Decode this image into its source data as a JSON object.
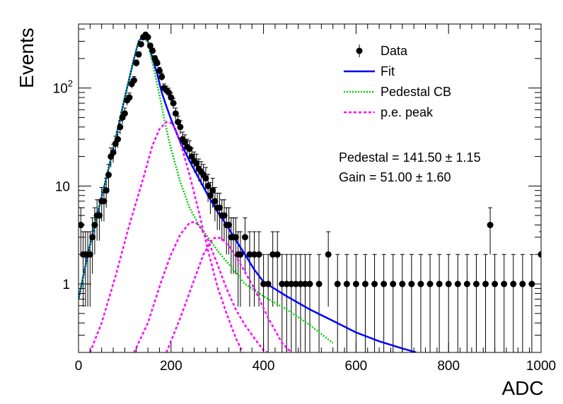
{
  "chart_data": {
    "type": "scatter",
    "xlabel": "ADC",
    "ylabel": "Events",
    "xlim": [
      0,
      1000
    ],
    "ylim": [
      0.2,
      450
    ],
    "yscale": "log",
    "grid": false,
    "legend_position": "top-right",
    "x_ticks": [
      0,
      200,
      400,
      600,
      800,
      1000
    ],
    "x_tick_labels": [
      "0",
      "200",
      "400",
      "600",
      "800",
      "1000"
    ],
    "y_ticks": [
      1,
      10,
      100
    ],
    "y_tick_labels": [
      "1",
      "10",
      "10^2"
    ],
    "legend": [
      {
        "label": "Data",
        "marker": "point-errorbar",
        "color": "#000000"
      },
      {
        "label": "Fit",
        "marker": "solid-line",
        "color": "#0000ff"
      },
      {
        "label": "Pedestal CB",
        "marker": "dotted-line",
        "color": "#00cc00"
      },
      {
        "label": "p.e. peak",
        "marker": "dashed-line",
        "color": "#ff00ff"
      }
    ],
    "annotations": [
      {
        "label": "Pedestal = 141.50",
        "pm": "±",
        "value": "1.15"
      },
      {
        "label": "Gain = 51.00",
        "pm": "±",
        "value": "1.60"
      }
    ],
    "series": [
      {
        "name": "Data",
        "color": "#000000",
        "x": [
          5,
          10,
          15,
          20,
          25,
          30,
          35,
          40,
          45,
          50,
          55,
          60,
          65,
          70,
          75,
          80,
          85,
          90,
          95,
          100,
          105,
          110,
          115,
          120,
          125,
          130,
          135,
          140,
          145,
          150,
          155,
          160,
          165,
          170,
          175,
          180,
          185,
          190,
          195,
          200,
          205,
          210,
          215,
          220,
          225,
          230,
          235,
          240,
          245,
          250,
          255,
          260,
          265,
          270,
          275,
          280,
          285,
          290,
          295,
          300,
          305,
          310,
          315,
          320,
          325,
          330,
          335,
          340,
          345,
          350,
          360,
          370,
          380,
          390,
          400,
          410,
          420,
          430,
          440,
          450,
          460,
          470,
          480,
          490,
          500,
          520,
          540,
          560,
          580,
          600,
          620,
          640,
          660,
          680,
          700,
          720,
          740,
          760,
          780,
          800,
          820,
          840,
          860,
          880,
          890,
          900,
          920,
          940,
          960,
          980,
          1000
        ],
        "y": [
          4,
          2,
          2,
          2,
          2,
          3,
          4,
          5,
          5,
          7,
          7,
          9,
          13,
          20,
          22,
          27,
          30,
          40,
          50,
          55,
          75,
          80,
          110,
          120,
          180,
          220,
          280,
          330,
          350,
          330,
          270,
          240,
          200,
          180,
          150,
          130,
          100,
          95,
          90,
          80,
          70,
          55,
          45,
          40,
          30,
          28,
          25,
          24,
          20,
          18,
          17,
          15,
          14,
          13,
          12,
          10,
          8,
          9,
          7,
          6,
          6,
          5,
          5,
          4,
          4,
          3,
          3,
          3,
          2,
          2,
          3,
          2,
          2,
          2,
          1,
          1,
          2,
          2,
          1,
          1,
          1,
          1,
          1,
          1,
          1,
          1,
          2,
          1,
          1,
          1,
          1,
          1,
          1,
          1,
          1,
          1,
          1,
          1,
          1,
          1,
          1,
          1,
          1,
          1,
          4,
          1,
          1,
          1,
          1,
          1,
          2
        ]
      },
      {
        "name": "Fit",
        "color": "#0000ff",
        "x": [
          0,
          20,
          40,
          60,
          80,
          100,
          120,
          130,
          140,
          150,
          160,
          170,
          180,
          190,
          200,
          220,
          240,
          260,
          280,
          300,
          320,
          340,
          360,
          380,
          400,
          450,
          500,
          550,
          600,
          650,
          700,
          730
        ],
        "y": [
          0.7,
          2,
          5,
          12,
          30,
          80,
          200,
          300,
          340,
          300,
          200,
          140,
          90,
          65,
          48,
          28,
          18,
          12,
          8,
          5.5,
          4,
          2.8,
          2,
          1.4,
          1.05,
          0.75,
          0.55,
          0.42,
          0.32,
          0.26,
          0.22,
          0.2
        ]
      },
      {
        "name": "Pedestal CB",
        "color": "#00cc00",
        "x": [
          0,
          20,
          40,
          60,
          80,
          100,
          120,
          130,
          140,
          150,
          160,
          170,
          180,
          190,
          200,
          220,
          240,
          260,
          280,
          300,
          320,
          340,
          360,
          400,
          450,
          500,
          550
        ],
        "y": [
          0.7,
          2,
          5,
          12,
          30,
          80,
          200,
          300,
          340,
          290,
          180,
          110,
          65,
          38,
          24,
          11,
          6,
          4,
          3,
          2.2,
          1.7,
          1.3,
          1,
          0.75,
          0.55,
          0.38,
          0.25
        ]
      },
      {
        "name": "p.e. peak 1",
        "color": "#ff00ff",
        "x": [
          25,
          50,
          80,
          110,
          140,
          160,
          175,
          190,
          200,
          210,
          220,
          240,
          260,
          280,
          300,
          320,
          340,
          355
        ],
        "y": [
          0.2,
          0.4,
          1.2,
          4,
          12,
          26,
          38,
          45,
          44,
          38,
          28,
          13,
          5.5,
          2.2,
          0.95,
          0.5,
          0.28,
          0.2
        ]
      },
      {
        "name": "p.e. peak 2",
        "color": "#ff00ff",
        "x": [
          120,
          150,
          180,
          200,
          220,
          240,
          250,
          260,
          280,
          300,
          320,
          340,
          360,
          380,
          400,
          410
        ],
        "y": [
          0.2,
          0.4,
          1.1,
          2,
          3.2,
          4.2,
          4.3,
          4,
          2.8,
          1.6,
          0.9,
          0.55,
          0.38,
          0.28,
          0.21,
          0.2
        ]
      },
      {
        "name": "p.e. peak 3",
        "color": "#ff00ff",
        "x": [
          190,
          220,
          250,
          270,
          290,
          300,
          310,
          330,
          350,
          380,
          410,
          440,
          460
        ],
        "y": [
          0.2,
          0.45,
          1.1,
          2,
          2.9,
          3,
          2.9,
          2.3,
          1.6,
          0.9,
          0.45,
          0.25,
          0.2
        ]
      }
    ]
  }
}
